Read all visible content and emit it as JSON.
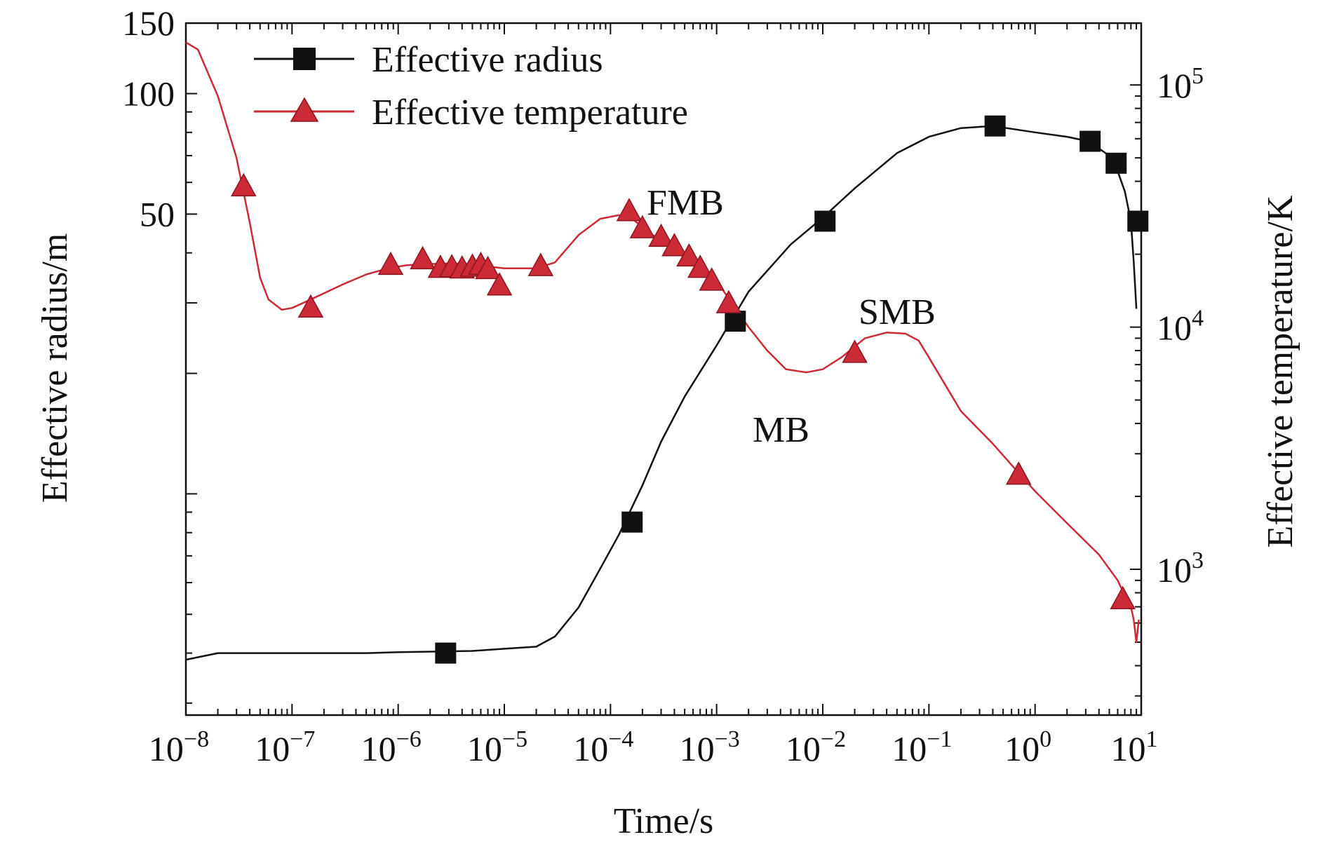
{
  "chart_data": {
    "type": "line",
    "xlabel": "Time/s",
    "ylabel_left": "Effective radius/m",
    "ylabel_right": "Effective temperature/K",
    "x_scale": "log",
    "xlim": [
      1e-08,
      10
    ],
    "x_ticks": [
      1e-08,
      1e-07,
      1e-06,
      1e-05,
      0.0001,
      0.001,
      0.01,
      0.1,
      1,
      10
    ],
    "x_tick_labels": [
      {
        "base": "10",
        "exp": "−8"
      },
      {
        "base": "10",
        "exp": "−7"
      },
      {
        "base": "10",
        "exp": "−6"
      },
      {
        "base": "10",
        "exp": "−5"
      },
      {
        "base": "10",
        "exp": "−4"
      },
      {
        "base": "10",
        "exp": "−3"
      },
      {
        "base": "10",
        "exp": "−2"
      },
      {
        "base": "10",
        "exp": "−1"
      },
      {
        "base": "10",
        "exp": "0"
      },
      {
        "base": "10",
        "exp": "1"
      }
    ],
    "y_left_scale": "log",
    "y_left_lim": [
      2.8,
      150
    ],
    "y_left_ticks": [
      50,
      100,
      150
    ],
    "y_left_tick_labels": [
      "50",
      "100",
      "150"
    ],
    "y_right_scale": "log",
    "y_right_lim": [
      250,
      180000.0
    ],
    "y_right_ticks": [
      1000,
      10000,
      100000
    ],
    "y_right_tick_labels": [
      {
        "base": "10",
        "exp": "3"
      },
      {
        "base": "10",
        "exp": "4"
      },
      {
        "base": "10",
        "exp": "5"
      }
    ],
    "grid": false,
    "legend_position": "top-left",
    "series": [
      {
        "name": "Effective radius",
        "axis": "left",
        "color": "#111111",
        "marker": "square",
        "x": [
          1e-08,
          2e-08,
          5e-08,
          1e-07,
          5e-07,
          1e-06,
          5e-06,
          1e-05,
          2e-05,
          3e-05,
          5e-05,
          8e-05,
          0.00012,
          0.0002,
          0.0003,
          0.0005,
          0.001,
          0.002,
          0.005,
          0.01,
          0.02,
          0.05,
          0.1,
          0.2,
          0.4,
          1,
          2,
          3.2,
          5,
          6,
          7,
          8,
          8.5,
          9
        ],
        "y": [
          3.85,
          4.0,
          4.0,
          4.0,
          4.0,
          4.02,
          4.05,
          4.1,
          4.15,
          4.4,
          5.2,
          6.5,
          7.9,
          10.5,
          13.5,
          17.5,
          23.5,
          32,
          42,
          49,
          58,
          71,
          78,
          82,
          83,
          80,
          78,
          76,
          70,
          64,
          57,
          48,
          38,
          29
        ],
        "marker_x": [
          2.8e-06,
          0.00016,
          0.0015,
          0.0105,
          0.42,
          3.3,
          5.8,
          9.3
        ],
        "marker_y": [
          4.0,
          8.5,
          27,
          48,
          83,
          76,
          67,
          48
        ]
      },
      {
        "name": "Effective temperature",
        "axis": "right",
        "color": "#cc2a36",
        "marker": "triangle",
        "x": [
          1e-08,
          1.3e-08,
          2e-08,
          3e-08,
          4e-08,
          5e-08,
          6e-08,
          8e-08,
          1e-07,
          1.5e-07,
          3e-07,
          5e-07,
          8e-07,
          1.2e-06,
          1.8e-06,
          3e-06,
          5e-06,
          7e-06,
          1e-05,
          2e-05,
          3e-05,
          5e-05,
          8e-05,
          0.00012,
          0.00016,
          0.00025,
          0.0004,
          0.0006,
          0.001,
          0.0015,
          0.002,
          0.003,
          0.0045,
          0.007,
          0.01,
          0.015,
          0.025,
          0.04,
          0.06,
          0.08,
          0.1,
          0.2,
          0.4,
          0.7,
          1,
          2,
          4,
          6,
          7,
          8,
          8.5,
          9,
          9.5
        ],
        "y": [
          150000,
          140000,
          90000,
          50000,
          27000,
          16000,
          13000,
          11800,
          12000,
          13000,
          15000,
          16500,
          17500,
          18000,
          18200,
          18300,
          18200,
          17800,
          17500,
          17500,
          18500,
          24000,
          28000,
          29000,
          28000,
          24000,
          21000,
          19000,
          15500,
          12000,
          10000,
          8000,
          6700,
          6500,
          6700,
          7500,
          9000,
          9500,
          9400,
          8800,
          7500,
          4500,
          3300,
          2500,
          2100,
          1550,
          1150,
          900,
          780,
          700,
          620,
          500,
          620
        ],
        "marker_x": [
          3.5e-08,
          1.5e-07,
          8.5e-07,
          1.7e-06,
          2.5e-06,
          3.2e-06,
          4e-06,
          5e-06,
          6e-06,
          7e-06,
          9e-06,
          2.2e-05,
          0.00015,
          0.0002,
          0.0003,
          0.0004,
          0.00055,
          0.0007,
          0.0009,
          0.0013,
          0.02,
          0.7,
          6.7
        ],
        "marker_y": [
          38000,
          12000,
          18000,
          19000,
          17500,
          17600,
          17400,
          17700,
          18000,
          17300,
          14800,
          17800,
          30000,
          25500,
          23500,
          21500,
          19500,
          17500,
          15500,
          12500,
          7800,
          2450,
          750
        ]
      }
    ],
    "annotations": [
      "FMB",
      "MB",
      "SMB"
    ]
  }
}
